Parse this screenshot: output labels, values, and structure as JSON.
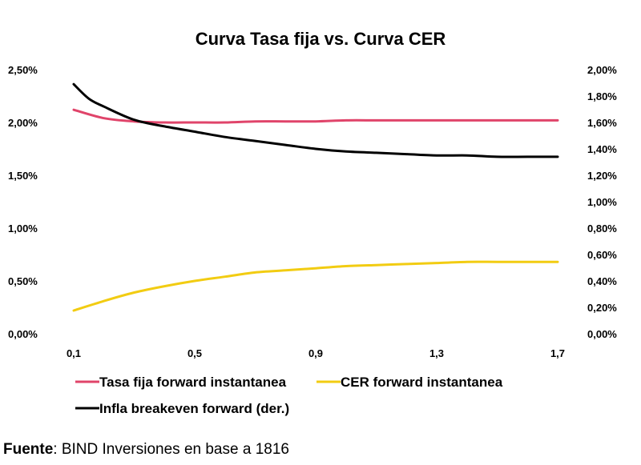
{
  "chart_data": {
    "type": "line",
    "title": "Curva Tasa fija vs. Curva CER",
    "xlabel": "",
    "ylabel": "",
    "x_ticks": [
      "0,1",
      "0,5",
      "0,9",
      "1,3",
      "1,7"
    ],
    "xlim": [
      0.1,
      1.7
    ],
    "y_left_ticks": [
      "0,00%",
      "0,50%",
      "1,00%",
      "1,50%",
      "2,00%",
      "2,50%"
    ],
    "ylim_left": [
      0,
      2.5
    ],
    "y_right_ticks": [
      "0,00%",
      "0,20%",
      "0,40%",
      "0,60%",
      "0,80%",
      "1,00%",
      "1,20%",
      "1,40%",
      "1,60%",
      "1,80%",
      "2,00%"
    ],
    "ylim_right": [
      0,
      2.0
    ],
    "grid": false,
    "legend_position": "bottom",
    "series": [
      {
        "name": "Tasa fija forward instantanea",
        "axis": "left",
        "color": "#e0446a",
        "x": [
          0.1,
          0.2,
          0.3,
          0.4,
          0.5,
          0.6,
          0.7,
          0.8,
          0.9,
          1.0,
          1.1,
          1.2,
          1.3,
          1.4,
          1.5,
          1.6,
          1.7
        ],
        "y": [
          2.12,
          2.04,
          2.01,
          2.0,
          2.0,
          2.0,
          2.01,
          2.01,
          2.01,
          2.02,
          2.02,
          2.02,
          2.02,
          2.02,
          2.02,
          2.02,
          2.02
        ]
      },
      {
        "name": "CER forward instantanea",
        "axis": "left",
        "color": "#f2cc12",
        "x": [
          0.1,
          0.2,
          0.3,
          0.4,
          0.5,
          0.6,
          0.7,
          0.8,
          0.9,
          1.0,
          1.1,
          1.2,
          1.3,
          1.4,
          1.5,
          1.6,
          1.7
        ],
        "y": [
          0.22,
          0.31,
          0.39,
          0.45,
          0.5,
          0.54,
          0.58,
          0.6,
          0.62,
          0.64,
          0.65,
          0.66,
          0.67,
          0.68,
          0.68,
          0.68,
          0.68
        ]
      },
      {
        "name": "Infla breakeven forward (der.)",
        "axis": "right",
        "color": "#000000",
        "x": [
          0.1,
          0.15,
          0.2,
          0.3,
          0.4,
          0.5,
          0.6,
          0.7,
          0.8,
          0.9,
          1.0,
          1.1,
          1.2,
          1.3,
          1.4,
          1.5,
          1.6,
          1.7
        ],
        "y": [
          1.89,
          1.78,
          1.72,
          1.62,
          1.57,
          1.53,
          1.49,
          1.46,
          1.43,
          1.4,
          1.38,
          1.37,
          1.36,
          1.35,
          1.35,
          1.34,
          1.34,
          1.34
        ]
      }
    ]
  },
  "source": {
    "label": "Fuente",
    "text": ": BIND Inversiones en base a 1816"
  }
}
